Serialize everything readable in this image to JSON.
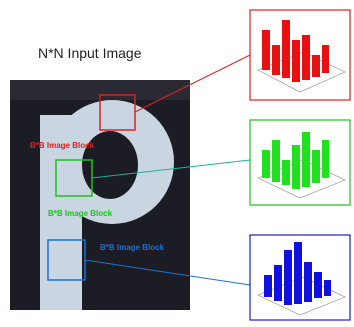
{
  "title": "N*N Input Image",
  "blocks": [
    {
      "label": "B*B Image Block"
    },
    {
      "label": "B*B Image Block"
    },
    {
      "label": "B*B Image Block"
    }
  ]
}
